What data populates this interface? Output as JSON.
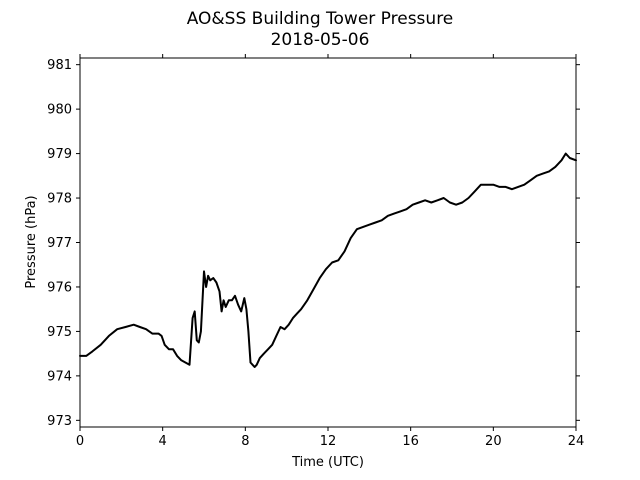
{
  "chart_data": {
    "type": "line",
    "title": "AO&SS Building Tower Pressure",
    "subtitle": "2018-05-06",
    "xlabel": "Time (UTC)",
    "ylabel": "Pressure (hPa)",
    "xlim": [
      0,
      24
    ],
    "ylim": [
      972.85,
      981.15
    ],
    "xticks": [
      {
        "value": 0,
        "label": "0"
      },
      {
        "value": 4,
        "label": "4"
      },
      {
        "value": 8,
        "label": "8"
      },
      {
        "value": 12,
        "label": "12"
      },
      {
        "value": 16,
        "label": "16"
      },
      {
        "value": 20,
        "label": "20"
      },
      {
        "value": 24,
        "label": "24"
      }
    ],
    "yticks": [
      {
        "value": 973,
        "label": "973"
      },
      {
        "value": 974,
        "label": "974"
      },
      {
        "value": 975,
        "label": "975"
      },
      {
        "value": 976,
        "label": "976"
      },
      {
        "value": 977,
        "label": "977"
      },
      {
        "value": 978,
        "label": "978"
      },
      {
        "value": 979,
        "label": "979"
      },
      {
        "value": 980,
        "label": "980"
      },
      {
        "value": 981,
        "label": "981"
      }
    ],
    "grid": false,
    "legend": false,
    "series": [
      {
        "color": "#000000",
        "x": [
          0,
          0.3,
          0.6,
          1.0,
          1.4,
          1.8,
          2.2,
          2.6,
          2.9,
          3.2,
          3.5,
          3.8,
          3.95,
          4.1,
          4.3,
          4.5,
          4.7,
          4.9,
          5.1,
          5.3,
          5.45,
          5.55,
          5.65,
          5.75,
          5.85,
          6.0,
          6.1,
          6.2,
          6.3,
          6.45,
          6.6,
          6.75,
          6.85,
          6.95,
          7.05,
          7.2,
          7.35,
          7.5,
          7.65,
          7.8,
          7.95,
          8.05,
          8.15,
          8.25,
          8.35,
          8.45,
          8.55,
          8.7,
          8.9,
          9.1,
          9.3,
          9.5,
          9.7,
          9.9,
          10.1,
          10.3,
          10.5,
          10.7,
          11.0,
          11.3,
          11.6,
          11.9,
          12.2,
          12.5,
          12.8,
          13.1,
          13.4,
          13.7,
          14.0,
          14.3,
          14.6,
          14.9,
          15.2,
          15.5,
          15.8,
          16.1,
          16.4,
          16.7,
          17.0,
          17.3,
          17.6,
          17.9,
          18.2,
          18.5,
          18.8,
          19.1,
          19.4,
          19.7,
          20.0,
          20.3,
          20.6,
          20.9,
          21.2,
          21.5,
          21.8,
          22.1,
          22.4,
          22.7,
          23.0,
          23.3,
          23.5,
          23.7,
          24.0
        ],
        "y": [
          974.45,
          974.45,
          974.55,
          974.7,
          974.9,
          975.05,
          975.1,
          975.15,
          975.1,
          975.05,
          974.95,
          974.95,
          974.9,
          974.7,
          974.6,
          974.6,
          974.45,
          974.35,
          974.3,
          974.25,
          975.3,
          975.45,
          974.8,
          974.75,
          975.0,
          976.35,
          976.0,
          976.25,
          976.15,
          976.2,
          976.1,
          975.9,
          975.45,
          975.7,
          975.55,
          975.7,
          975.7,
          975.8,
          975.6,
          975.45,
          975.75,
          975.5,
          975.0,
          974.3,
          974.25,
          974.2,
          974.25,
          974.4,
          974.5,
          974.6,
          974.7,
          974.9,
          975.1,
          975.05,
          975.15,
          975.3,
          975.4,
          975.5,
          975.7,
          975.95,
          976.2,
          976.4,
          976.55,
          976.6,
          976.8,
          977.1,
          977.3,
          977.35,
          977.4,
          977.45,
          977.5,
          977.6,
          977.65,
          977.7,
          977.75,
          977.85,
          977.9,
          977.95,
          977.9,
          977.95,
          978.0,
          977.9,
          977.85,
          977.9,
          978.0,
          978.15,
          978.3,
          978.3,
          978.3,
          978.25,
          978.25,
          978.2,
          978.25,
          978.3,
          978.4,
          978.5,
          978.55,
          978.6,
          978.7,
          978.85,
          979.0,
          978.9,
          978.85
        ]
      }
    ]
  }
}
